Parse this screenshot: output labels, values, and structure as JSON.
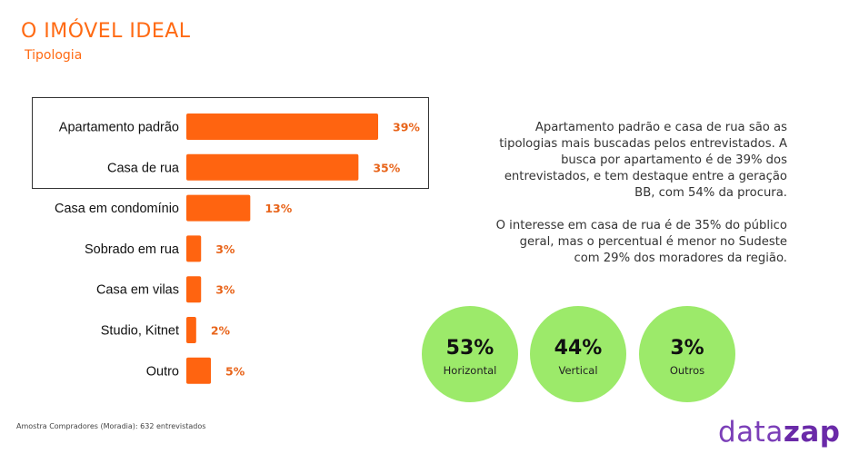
{
  "header": {
    "title": "O IMÓVEL IDEAL",
    "subtitle": "Tipologia"
  },
  "chart_data": {
    "type": "bar",
    "orientation": "horizontal",
    "categories": [
      "Apartamento padrão",
      "Casa de rua",
      "Casa em condomínio",
      "Sobrado em rua",
      "Casa em vilas",
      "Studio, Kitnet",
      "Outro"
    ],
    "values": [
      39,
      35,
      13,
      3,
      3,
      2,
      5
    ],
    "value_labels": [
      "39%",
      "35%",
      "13%",
      "3%",
      "3%",
      "2%",
      "5%"
    ],
    "highlighted": [
      "Apartamento padrão",
      "Casa de rua"
    ],
    "bar_color": "#ff6410",
    "label_color": "#e8641a",
    "xlim": [
      0,
      39
    ],
    "grid": false,
    "legend": "none"
  },
  "description": {
    "paragraph1": "Apartamento padrão e casa de rua são as tipologias mais buscadas pelos entrevistados. A busca por apartamento é de 39% dos entrevistados, e tem destaque entre a geração BB, com 54% da procura.",
    "paragraph2": "O interesse em casa de rua é de 35% do público geral, mas o percentual é menor no Sudeste com 29% dos moradores da região."
  },
  "summary": [
    {
      "value": "53%",
      "label": "Horizontal"
    },
    {
      "value": "44%",
      "label": "Vertical"
    },
    {
      "value": "3%",
      "label": "Outros"
    }
  ],
  "summary_color": "#9cea6a",
  "footnote": "Amostra Compradores (Moradia): 632 entrevistados",
  "brand": {
    "part1": "data",
    "part2": "zap",
    "color": "#7b3fb8"
  }
}
